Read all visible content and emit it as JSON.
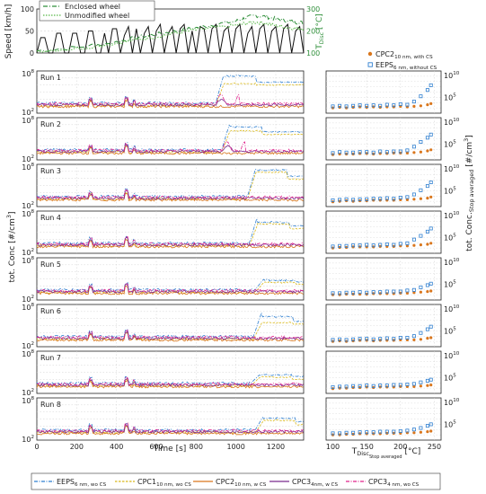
{
  "colors": {
    "eeps": "#2f7fd0",
    "cpc1": "#d9b81a",
    "cpc2": "#d9761c",
    "cpc3_4nm": "#7b2a8e",
    "cpc3_wo": "#e0208a",
    "speed": "#111111",
    "enclosed": "#2f8f3a",
    "unmodified": "#58b848",
    "tdisc_axis": "#2f8f3a"
  },
  "top_panel": {
    "ylabel_left": "Speed [km/h]",
    "ylabel_right_main": "T",
    "ylabel_right_sub": "Disc",
    "ylabel_right_unit": " [°C]",
    "y_ticks_left": [
      "0",
      "50",
      "100"
    ],
    "y_ticks_right": [
      "100",
      "200",
      "300"
    ],
    "legend": [
      "Enclosed wheel",
      "Unmodified wheel"
    ]
  },
  "main_ylabel": {
    "text": "tot. Conc [#/cm",
    "sup": "3",
    "close": "]"
  },
  "right_ylabel": {
    "pre": "tot. Conc.",
    "sub": "Stop averaged",
    "post": " [#/cm",
    "sup": "3",
    "close": "]"
  },
  "run_labels": [
    "Run 1",
    "Run 2",
    "Run 3",
    "Run 4",
    "Run 5",
    "Run 6",
    "Run 7",
    "Run 8"
  ],
  "left_y_ticks": {
    "top_base": "10",
    "top_exp": "8",
    "bot_base": "10",
    "bot_exp": "2"
  },
  "right_y_ticks": {
    "hi_base": "10",
    "hi_exp": "10",
    "mid_base": "10",
    "mid_exp": "5"
  },
  "x_ticks": [
    "0",
    "200",
    "400",
    "600",
    "800",
    "1000",
    "1200"
  ],
  "x_label": "Time [s]",
  "right_x_ticks": [
    "100",
    "150",
    "200",
    "250"
  ],
  "right_x_label": {
    "main": "T",
    "sub": "Disc",
    "sub2": "Stop averaged",
    "unit": " [°C]"
  },
  "right_legend": {
    "cpc2_main": "CPC2",
    "cpc2_sub": "10 nm, with CS",
    "eeps_main": "EEPS",
    "eeps_sub": "6 nm, without CS"
  },
  "bottom_legend": [
    {
      "main": "EEPS",
      "sub": "6 nm, wo CS"
    },
    {
      "main": "CPC1",
      "sub": "10 nm, wo CS"
    },
    {
      "main": "CPC2",
      "sub": "10 nm, w CS"
    },
    {
      "main": "CPC3",
      "sub": "4nm, w CS"
    },
    {
      "main": "CPC3",
      "sub": "4 nm, wo CS"
    }
  ],
  "chart_data": {
    "type": "line",
    "top_speed": {
      "x": [
        0,
        20,
        40,
        60,
        80,
        100,
        120,
        140,
        160,
        180,
        200,
        220,
        240,
        260,
        280,
        300,
        320,
        340,
        360,
        380,
        400,
        420,
        440,
        460,
        480,
        500,
        520,
        540,
        560,
        580,
        600,
        620,
        640,
        660,
        680,
        700,
        720,
        740,
        760,
        780,
        800,
        820,
        840,
        860,
        880,
        900,
        920,
        940,
        960,
        980,
        1000,
        1020,
        1040,
        1060,
        1080,
        1100,
        1120,
        1140,
        1160,
        1180,
        1200,
        1220,
        1240,
        1260,
        1280,
        1300,
        1320,
        1340
      ],
      "y": [
        0,
        35,
        35,
        0,
        0,
        45,
        45,
        0,
        0,
        45,
        45,
        0,
        0,
        50,
        50,
        0,
        0,
        45,
        0,
        55,
        55,
        0,
        40,
        60,
        0,
        55,
        0,
        45,
        60,
        0,
        50,
        65,
        0,
        45,
        60,
        0,
        55,
        65,
        0,
        50,
        0,
        60,
        55,
        0,
        55,
        65,
        0,
        50,
        60,
        0,
        55,
        65,
        0,
        45,
        60,
        0,
        55,
        65,
        0,
        50,
        60,
        0,
        55,
        65,
        0,
        50,
        60,
        0
      ],
      "ylim": [
        0,
        100
      ]
    },
    "top_tdisc_enclosed": {
      "x": [
        0,
        200,
        400,
        500,
        600,
        700,
        800,
        900,
        1000,
        1050,
        1100,
        1150,
        1200,
        1250,
        1300,
        1340
      ],
      "y": [
        110,
        125,
        150,
        170,
        185,
        200,
        215,
        230,
        245,
        260,
        270,
        265,
        255,
        248,
        240,
        238
      ],
      "ylim": [
        100,
        300
      ]
    },
    "top_tdisc_unmodified": {
      "x": [
        0,
        200,
        400,
        500,
        600,
        700,
        800,
        900,
        1000,
        1050,
        1100,
        1150,
        1200,
        1250,
        1300,
        1340
      ],
      "y": [
        110,
        120,
        145,
        160,
        175,
        190,
        205,
        215,
        225,
        235,
        240,
        235,
        225,
        218,
        212,
        210
      ],
      "ylim": [
        100,
        300
      ]
    },
    "runs": [
      {
        "run": "Run 1",
        "event_start": 900,
        "peak_eeps": 7.6,
        "plateau_eeps": 7.3,
        "plateau_cpc1": 6.2,
        "tail_eeps": 6.4
      },
      {
        "run": "Run 2",
        "event_start": 930,
        "peak_eeps": 7.3,
        "plateau_eeps": 6.7,
        "plateau_cpc1": 6.1,
        "tail_eeps": 6.0
      },
      {
        "run": "Run 3",
        "event_start": 1060,
        "peak_eeps": 7.5,
        "plateau_eeps": 7.2,
        "plateau_cpc1": 6.9,
        "tail_eeps": 6.3
      },
      {
        "run": "Run 4",
        "event_start": 1070,
        "peak_eeps": 7.5,
        "plateau_eeps": 6.4,
        "plateau_cpc1": 6.2,
        "tail_eeps": 5.9
      },
      {
        "run": "Run 5",
        "event_start": 1100,
        "peak_eeps": 5.0,
        "plateau_eeps": 4.8,
        "plateau_cpc1": 4.5,
        "tail_eeps": 4.6
      },
      {
        "run": "Run 6",
        "event_start": 1090,
        "peak_eeps": 7.0,
        "plateau_eeps": 6.3,
        "plateau_cpc1": 5.4,
        "tail_eeps": 5.6
      },
      {
        "run": "Run 7",
        "event_start": 1080,
        "peak_eeps": 4.7,
        "plateau_eeps": 4.6,
        "plateau_cpc1": 4.3,
        "tail_eeps": 4.4
      },
      {
        "run": "Run 8",
        "event_start": 1100,
        "peak_eeps": 5.5,
        "plateau_eeps": 5.1,
        "plateau_cpc1": 4.8,
        "tail_eeps": 4.6
      }
    ],
    "left_ylim_log10": [
      2,
      8
    ],
    "xlim": [
      0,
      1340
    ],
    "right_scatter": {
      "xlim": [
        90,
        260
      ],
      "ylim_log10": [
        2,
        10
      ],
      "x": [
        100,
        110,
        120,
        130,
        140,
        150,
        160,
        170,
        180,
        190,
        200,
        210,
        220,
        230,
        240,
        245
      ],
      "eeps_log10": [
        [
          3.3,
          3.4,
          3.3,
          3.4,
          3.5,
          3.4,
          3.5,
          3.4,
          3.6,
          3.5,
          3.7,
          3.6,
          4.2,
          5.2,
          6.4,
          7.3
        ],
        [
          3.3,
          3.5,
          3.4,
          3.4,
          3.5,
          3.5,
          3.4,
          3.6,
          3.5,
          3.6,
          3.6,
          3.8,
          4.5,
          5.4,
          6.2,
          6.8
        ],
        [
          3.2,
          3.3,
          3.4,
          3.3,
          3.4,
          3.4,
          3.5,
          3.5,
          3.6,
          3.5,
          3.7,
          3.8,
          4.3,
          5.1,
          5.9,
          6.6
        ],
        [
          3.3,
          3.4,
          3.4,
          3.5,
          3.5,
          3.6,
          3.5,
          3.6,
          3.7,
          3.6,
          3.8,
          3.9,
          4.6,
          5.3,
          6.1,
          6.7
        ],
        [
          3.3,
          3.3,
          3.4,
          3.4,
          3.5,
          3.4,
          3.5,
          3.5,
          3.6,
          3.6,
          3.6,
          3.8,
          3.9,
          4.4,
          4.8,
          5.1
        ],
        [
          3.3,
          3.4,
          3.3,
          3.4,
          3.5,
          3.5,
          3.4,
          3.5,
          3.6,
          3.5,
          3.7,
          3.7,
          4.0,
          4.6,
          5.3,
          5.8
        ],
        [
          3.2,
          3.3,
          3.3,
          3.4,
          3.4,
          3.5,
          3.4,
          3.5,
          3.5,
          3.6,
          3.6,
          3.7,
          3.8,
          4.1,
          4.4,
          4.6
        ],
        [
          3.3,
          3.3,
          3.4,
          3.4,
          3.5,
          3.5,
          3.5,
          3.6,
          3.6,
          3.6,
          3.7,
          3.8,
          4.0,
          4.3,
          4.7,
          5.0
        ]
      ],
      "cpc2_log10": [
        [
          3.0,
          3.1,
          3.0,
          3.1,
          3.2,
          3.1,
          3.2,
          3.1,
          3.2,
          3.2,
          3.3,
          3.2,
          3.3,
          3.4,
          3.6,
          3.8
        ],
        [
          3.0,
          3.1,
          3.1,
          3.1,
          3.2,
          3.2,
          3.1,
          3.2,
          3.2,
          3.3,
          3.3,
          3.3,
          3.4,
          3.5,
          3.7,
          3.9
        ],
        [
          2.9,
          3.0,
          3.1,
          3.0,
          3.1,
          3.1,
          3.2,
          3.2,
          3.2,
          3.2,
          3.3,
          3.3,
          3.4,
          3.5,
          3.6,
          3.8
        ],
        [
          3.0,
          3.1,
          3.1,
          3.2,
          3.2,
          3.2,
          3.2,
          3.3,
          3.3,
          3.3,
          3.4,
          3.4,
          3.5,
          3.6,
          3.7,
          3.9
        ],
        [
          3.0,
          3.0,
          3.1,
          3.1,
          3.1,
          3.1,
          3.2,
          3.2,
          3.2,
          3.2,
          3.3,
          3.3,
          3.4,
          3.5,
          3.6,
          3.7
        ],
        [
          3.0,
          3.1,
          3.0,
          3.1,
          3.2,
          3.2,
          3.1,
          3.2,
          3.2,
          3.2,
          3.3,
          3.3,
          3.3,
          3.4,
          3.6,
          3.7
        ],
        [
          2.9,
          3.0,
          3.0,
          3.1,
          3.1,
          3.2,
          3.1,
          3.2,
          3.2,
          3.2,
          3.3,
          3.3,
          3.3,
          3.4,
          3.5,
          3.6
        ],
        [
          3.0,
          3.0,
          3.1,
          3.1,
          3.2,
          3.2,
          3.2,
          3.2,
          3.3,
          3.3,
          3.3,
          3.4,
          3.4,
          3.5,
          3.6,
          3.7
        ]
      ]
    }
  }
}
